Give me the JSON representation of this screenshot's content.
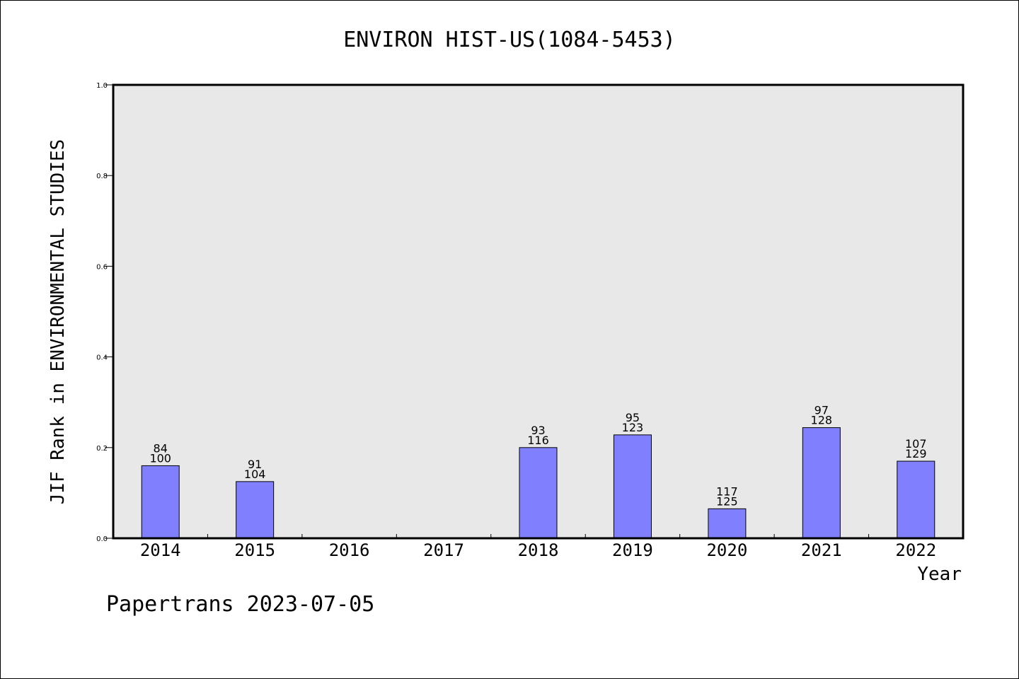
{
  "chart_data": {
    "type": "bar",
    "title": "ENVIRON HIST-US(1084-5453)",
    "xlabel": "Year",
    "ylabel": "JIF Rank in ENVIRONMENTAL STUDIES",
    "ylim": [
      0,
      1.0
    ],
    "yticks": [
      "0.0",
      "0.2",
      "0.4",
      "0.6",
      "0.8",
      "1.0"
    ],
    "categories": [
      "2014",
      "2015",
      "2016",
      "2017",
      "2018",
      "2019",
      "2020",
      "2021",
      "2022"
    ],
    "values": [
      0.16,
      0.125,
      null,
      null,
      0.2,
      0.228,
      0.065,
      0.244,
      0.17
    ],
    "rank": [
      "84",
      "91",
      "",
      "",
      "93",
      "95",
      "117",
      "97",
      "107"
    ],
    "total": [
      "100",
      "104",
      "",
      "",
      "116",
      "123",
      "125",
      "128",
      "129"
    ],
    "bar_color": "#8080ff",
    "plot_bg": "#e8e8e8",
    "grid": false
  },
  "footer": "Papertrans 2023-07-05"
}
